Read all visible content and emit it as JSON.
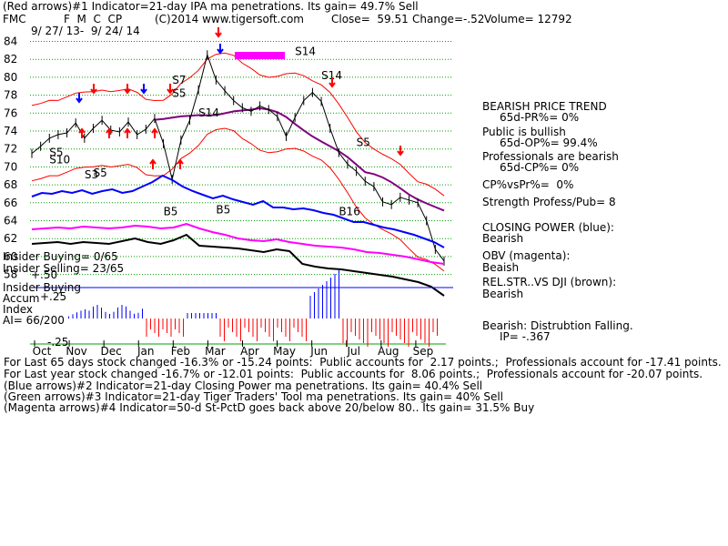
{
  "header": {
    "line1": "(Red arrows)#1 Indicator=21-day IPA ma penetrations. Its gain= 49.7% Sell",
    "ticker": "FMC",
    "series_codes": "F  M  C  CP",
    "copyright": "(C)2014 www.tigersoft.com",
    "close": "Close=  59.51",
    "change": "Change=-.52",
    "volume": "Volume= 12792",
    "date_range": "9/ 27/ 13-  9/ 24/ 14"
  },
  "right_panel": [
    "BEARISH PRICE TREND",
    "65d-PR%= 0%",
    "Public is bullish",
    "65d-OP%= 99.4%",
    "Professionals are bearish",
    "65d-CP%= 0%",
    "CP%vsPr%=  0%",
    "Strength Profess/Pub= 8",
    "CLOSING POWER (blue):",
    "Bearish",
    "OBV (magenta):",
    "Beaish",
    "REL.STR..VS DJI (brown):",
    "Bearish",
    "Bearish: Distrubtion Falling.",
    "IP= -.367"
  ],
  "left_labels": {
    "insider_buying": "Insider Buying= 0/65",
    "insider_selling": "Insider Selling= 23/65",
    "insider_buying2": "Insider Buying",
    "accum": "Accum",
    "plus25": "+.25",
    "plus50": "+.50",
    "index": "Index",
    "ai": "AI= 66/200",
    "minus25": "-.25"
  },
  "footer": [
    "For Last 65 days stock changed -16.3% or -15.24 points:  Public accounts for  2.17 points.;  Professionals account for -17.41 points.",
    "For Last year stock changed -16.7% or -12.01 points:  Public accounts for  8.06 points.;  Professionals account for -20.07 points.",
    "(Blue arrows)#2 Indicator=21-day Closing Power ma penetrations. Its gain= 40.4% Sell",
    "(Green arrows)#3 Indicator=21-day Tiger Traders' Tool ma penetrations. Its gain= 40% Sell",
    "(Magenta arrows)#4 Indicator=50-d St-PctD goes back above 20/below 80.. Its gain= 31.5% Buy"
  ],
  "chart_data": {
    "type": "line",
    "yticks": [
      84,
      82,
      80,
      78,
      76,
      74,
      72,
      70,
      68,
      66,
      64,
      62,
      60,
      58
    ],
    "ylim": [
      57,
      85
    ],
    "months": [
      "Oct",
      "Nov",
      "Dec",
      "Jan",
      "Feb",
      "Mar",
      "Apr",
      "May",
      "Jun",
      "Jul",
      "Aug",
      "Sep"
    ],
    "price_close": [
      71.5,
      72.3,
      73.2,
      73.6,
      73.8,
      74.9,
      73.2,
      74.3,
      75.2,
      74.1,
      73.9,
      75.0,
      73.6,
      74.2,
      75.4,
      72.6,
      68.6,
      73.0,
      75.2,
      78.6,
      82.5,
      79.7,
      78.5,
      77.4,
      76.6,
      76.2,
      76.8,
      76.4,
      75.6,
      73.4,
      75.5,
      77.4,
      78.3,
      77.3,
      74.3,
      71.6,
      70.3,
      69.5,
      68.4,
      67.8,
      66.1,
      65.8,
      66.6,
      66.3,
      66.0,
      64.0,
      60.8,
      59.5
    ],
    "series_colors": {
      "price": "#000000",
      "bands": "#ff0000",
      "ma": "#800080",
      "closing_power": "#0000ff",
      "obv": "#ff00ff",
      "rel_str": "#000000",
      "accum_pos": "#0000ff",
      "accum_neg": "#ff0000"
    },
    "annotations": [
      {
        "text": "S7",
        "price": 79.3
      },
      {
        "text": "S5",
        "price": 77.8
      },
      {
        "text": "S14",
        "price": 75.6
      },
      {
        "text": "S14",
        "price": 82.5
      },
      {
        "text": "S14",
        "price": 79.8
      },
      {
        "text": "S5",
        "price": 72.3
      },
      {
        "text": "S5",
        "price": 71.2
      },
      {
        "text": "S10",
        "price": 70.4
      },
      {
        "text": "S3",
        "price": 68.7
      },
      {
        "text": "S5",
        "price": 68.9
      },
      {
        "text": "B5",
        "price": 64.6
      },
      {
        "text": "B5",
        "price": 64.8
      },
      {
        "text": "B16",
        "price": 64.6
      }
    ]
  }
}
